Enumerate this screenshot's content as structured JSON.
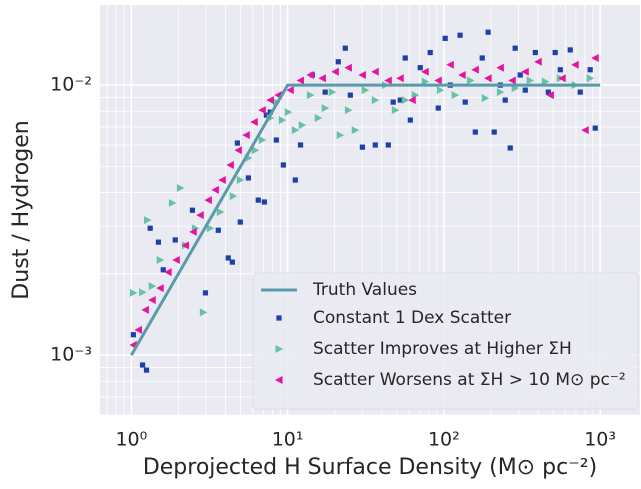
{
  "chart_data": {
    "type": "scatter",
    "xlabel": "Deprojected H Surface Density (M⊙ pc⁻²)",
    "ylabel": "Dust / Hydrogen",
    "xscale": "log",
    "yscale": "log",
    "xlim": [
      0.63,
      1800
    ],
    "ylim": [
      0.0006,
      0.0198
    ],
    "xticks": [
      {
        "value": 1,
        "label": "10⁰"
      },
      {
        "value": 10,
        "label": "10¹"
      },
      {
        "value": 100,
        "label": "10²"
      },
      {
        "value": 1000,
        "label": "10³"
      }
    ],
    "yticks": [
      {
        "value": 0.001,
        "label": "10⁻³"
      },
      {
        "value": 0.01,
        "label": "10⁻²"
      }
    ],
    "xminorticks": [
      0.7,
      0.8,
      0.9,
      2,
      3,
      4,
      5,
      6,
      7,
      8,
      9,
      20,
      30,
      40,
      50,
      60,
      70,
      80,
      90,
      200,
      300,
      400,
      500,
      600,
      700,
      800,
      900
    ],
    "yminorticks": [
      0.0006,
      0.0007,
      0.0008,
      0.0009,
      0.002,
      0.003,
      0.004,
      0.005,
      0.006,
      0.007,
      0.008,
      0.009
    ],
    "grid": true,
    "legend": "lower right",
    "series": [
      {
        "name": "Truth Values",
        "type": "line",
        "color": "#5b9aa8",
        "x": [
          1,
          10,
          1000
        ],
        "values": [
          0.001,
          0.01,
          0.01
        ]
      },
      {
        "name": "Constant 1 Dex Scatter",
        "type": "scatter",
        "marker": "square",
        "color": "#1f40a8",
        "x": [
          1.03,
          1.18,
          1.25,
          1.32,
          1.6,
          1.49,
          1.91,
          2.46,
          2.98,
          3.6,
          4.17,
          4.43,
          4.77,
          4.98,
          5.61,
          6.49,
          7.1,
          7.31,
          7.75,
          8.47,
          9.39,
          11.2,
          12.1,
          14.4,
          17.4,
          21.1,
          23.4,
          25.2,
          30.1,
          36.4,
          44.1,
          47.4,
          52.6,
          56.6,
          61,
          70.6,
          81.8,
          92.1,
          102,
          110,
          127,
          137,
          159,
          176,
          192,
          210,
          230,
          247,
          266,
          286,
          308,
          332,
          385,
          466,
          516,
          556,
          644,
          746,
          864,
          931
        ],
        "values": [
          0.00119,
          0.000919,
          0.00088,
          0.00295,
          0.00207,
          0.00262,
          0.00267,
          0.00344,
          0.0017,
          0.0029,
          0.00229,
          0.00221,
          0.0061,
          0.00311,
          0.00453,
          0.00375,
          0.00369,
          0.00774,
          0.00794,
          0.00626,
          0.00506,
          0.00445,
          0.006,
          0.0109,
          0.00942,
          0.0122,
          0.0137,
          0.00918,
          0.00589,
          0.006,
          0.006,
          0.00865,
          0.0088,
          0.0126,
          0.00742,
          0.0116,
          0.0132,
          0.00822,
          0.0149,
          0.01,
          0.0153,
          0.00865,
          0.0067,
          0.0126,
          0.0157,
          0.0067,
          0.01,
          0.0088,
          0.00585,
          0.0137,
          0.0109,
          0.00958,
          0.0132,
          0.00942,
          0.0132,
          0.0114,
          0.0135,
          0.00942,
          0.0114,
          0.00693
        ]
      },
      {
        "name": "Scatter Improves at Higher ΣH",
        "type": "scatter",
        "marker": "triangle-right",
        "color": "#66c2a5",
        "x": [
          1.03,
          1.18,
          1.27,
          1.36,
          1.53,
          1.83,
          2.06,
          2.22,
          2.57,
          2.89,
          3.2,
          3.71,
          4.49,
          4.98,
          5.61,
          6.21,
          6.89,
          7.75,
          8.47,
          9.25,
          10.1,
          11.2,
          12.4,
          14,
          15.7,
          17.4,
          19.3,
          21.7,
          24.5,
          27.1,
          31.4,
          36.4,
          42.2,
          48.9,
          56.6,
          65.6,
          76,
          94.8,
          118,
          148,
          184,
          230,
          286,
          357,
          446,
          556,
          693,
          864
        ],
        "values": [
          0.0017,
          0.00171,
          0.00316,
          0.0018,
          0.00225,
          0.00366,
          0.00416,
          0.00255,
          0.00295,
          0.00144,
          0.00295,
          0.00339,
          0.00388,
          0.00445,
          0.00537,
          0.00574,
          0.00626,
          0.00755,
          0.00865,
          0.00742,
          0.00794,
          0.00681,
          0.00711,
          0.00918,
          0.00755,
          0.00822,
          0.00942,
          0.00653,
          0.00808,
          0.00681,
          0.00958,
          0.0088,
          0.01,
          0.00808,
          0.0088,
          0.00918,
          0.0103,
          0.00958,
          0.00918,
          0.0104,
          0.00895,
          0.00942,
          0.00975,
          0.0104,
          0.0103,
          0.0106,
          0.01,
          0.0106
        ]
      },
      {
        "name": "Scatter Worsens at ΣH > 10 M⊙ pc⁻²",
        "type": "scatter",
        "marker": "triangle-left",
        "color": "#e6139e",
        "x": [
          1.03,
          1.11,
          1.23,
          1.36,
          1.53,
          1.72,
          1.94,
          2.22,
          2.49,
          2.76,
          3.11,
          3.45,
          3.82,
          4.3,
          4.84,
          5.44,
          6.12,
          6.89,
          7.75,
          8.72,
          10.4,
          12.1,
          14,
          16.7,
          20.2,
          24.5,
          30.1,
          36.4,
          44.1,
          52.6,
          62.8,
          76,
          92.1,
          110,
          131,
          159,
          192,
          230,
          274,
          332,
          402,
          480,
          572,
          693,
          803,
          931
        ],
        "values": [
          0.00109,
          0.00124,
          0.00147,
          0.0016,
          0.00177,
          0.00203,
          0.00225,
          0.00255,
          0.00286,
          0.0033,
          0.00375,
          0.00409,
          0.00445,
          0.00506,
          0.00574,
          0.00653,
          0.0073,
          0.00808,
          0.0088,
          0.00918,
          0.00958,
          0.0104,
          0.0109,
          0.0106,
          0.0112,
          0.0116,
          0.0109,
          0.0112,
          0.0104,
          0.0106,
          0.0088,
          0.0112,
          0.0104,
          0.0119,
          0.0109,
          0.0114,
          0.0106,
          0.0116,
          0.0104,
          0.0112,
          0.0122,
          0.00918,
          0.0106,
          0.0119,
          0.00681,
          0.0126
        ]
      }
    ]
  }
}
